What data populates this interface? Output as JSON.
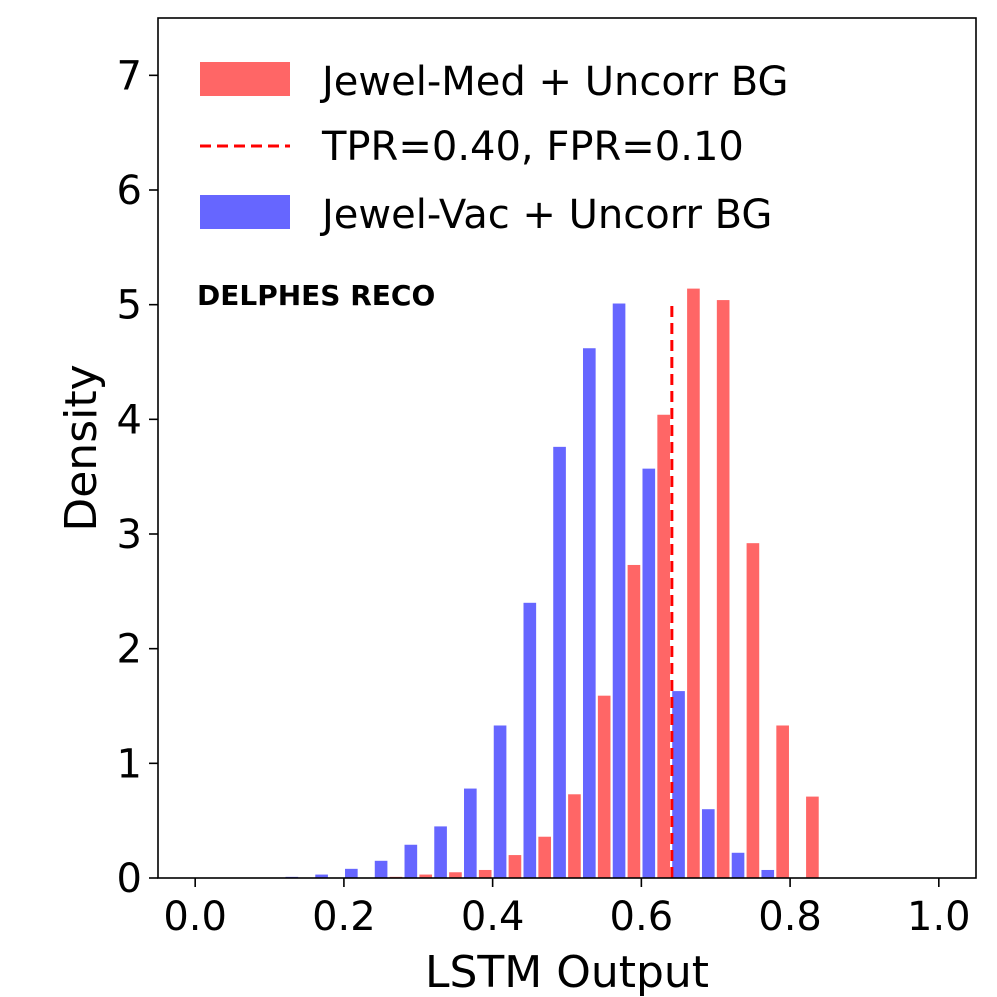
{
  "chart_data": {
    "type": "bar",
    "title": "",
    "xlabel": "LSTM Output",
    "ylabel": "Density",
    "xlim": [
      -0.05,
      1.05
    ],
    "ylim": [
      0,
      7.5
    ],
    "xticks": [
      0.0,
      0.2,
      0.4,
      0.6,
      0.8,
      1.0
    ],
    "xtick_labels": [
      "0.0",
      "0.2",
      "0.4",
      "0.6",
      "0.8",
      "1.0"
    ],
    "yticks": [
      0,
      1,
      2,
      3,
      4,
      5,
      6,
      7
    ],
    "ytick_labels": [
      "0",
      "1",
      "2",
      "3",
      "4",
      "5",
      "6",
      "7"
    ],
    "bin_width": 0.04,
    "annotation": "DELPHES RECO",
    "threshold": {
      "label": "TPR=0.40, FPR=0.10",
      "x": 0.641,
      "y_max": 5.0,
      "color": "#ff0000"
    },
    "legend_position": "top-left",
    "series": [
      {
        "name": "Jewel-Med + Uncorr BG",
        "color": "#ff6666",
        "x": [
          0.24,
          0.28,
          0.32,
          0.36,
          0.4,
          0.44,
          0.48,
          0.52,
          0.56,
          0.6,
          0.64,
          0.68,
          0.72,
          0.76,
          0.8
        ],
        "values": [
          0.01,
          0.03,
          0.05,
          0.07,
          0.2,
          0.36,
          0.73,
          1.59,
          2.73,
          4.04,
          5.14,
          5.04,
          2.92,
          1.33,
          0.71
        ]
      },
      {
        "name": "Jewel-Vac + Uncorr BG",
        "color": "#6666ff",
        "x": [
          0.12,
          0.16,
          0.2,
          0.24,
          0.28,
          0.32,
          0.36,
          0.4,
          0.44,
          0.48,
          0.52,
          0.56,
          0.6,
          0.64,
          0.68,
          0.72,
          0.76
        ],
        "values": [
          0.01,
          0.03,
          0.08,
          0.15,
          0.29,
          0.45,
          0.78,
          1.33,
          2.4,
          3.76,
          4.62,
          5.01,
          3.57,
          1.63,
          0.6,
          0.22,
          0.07
        ]
      }
    ]
  }
}
